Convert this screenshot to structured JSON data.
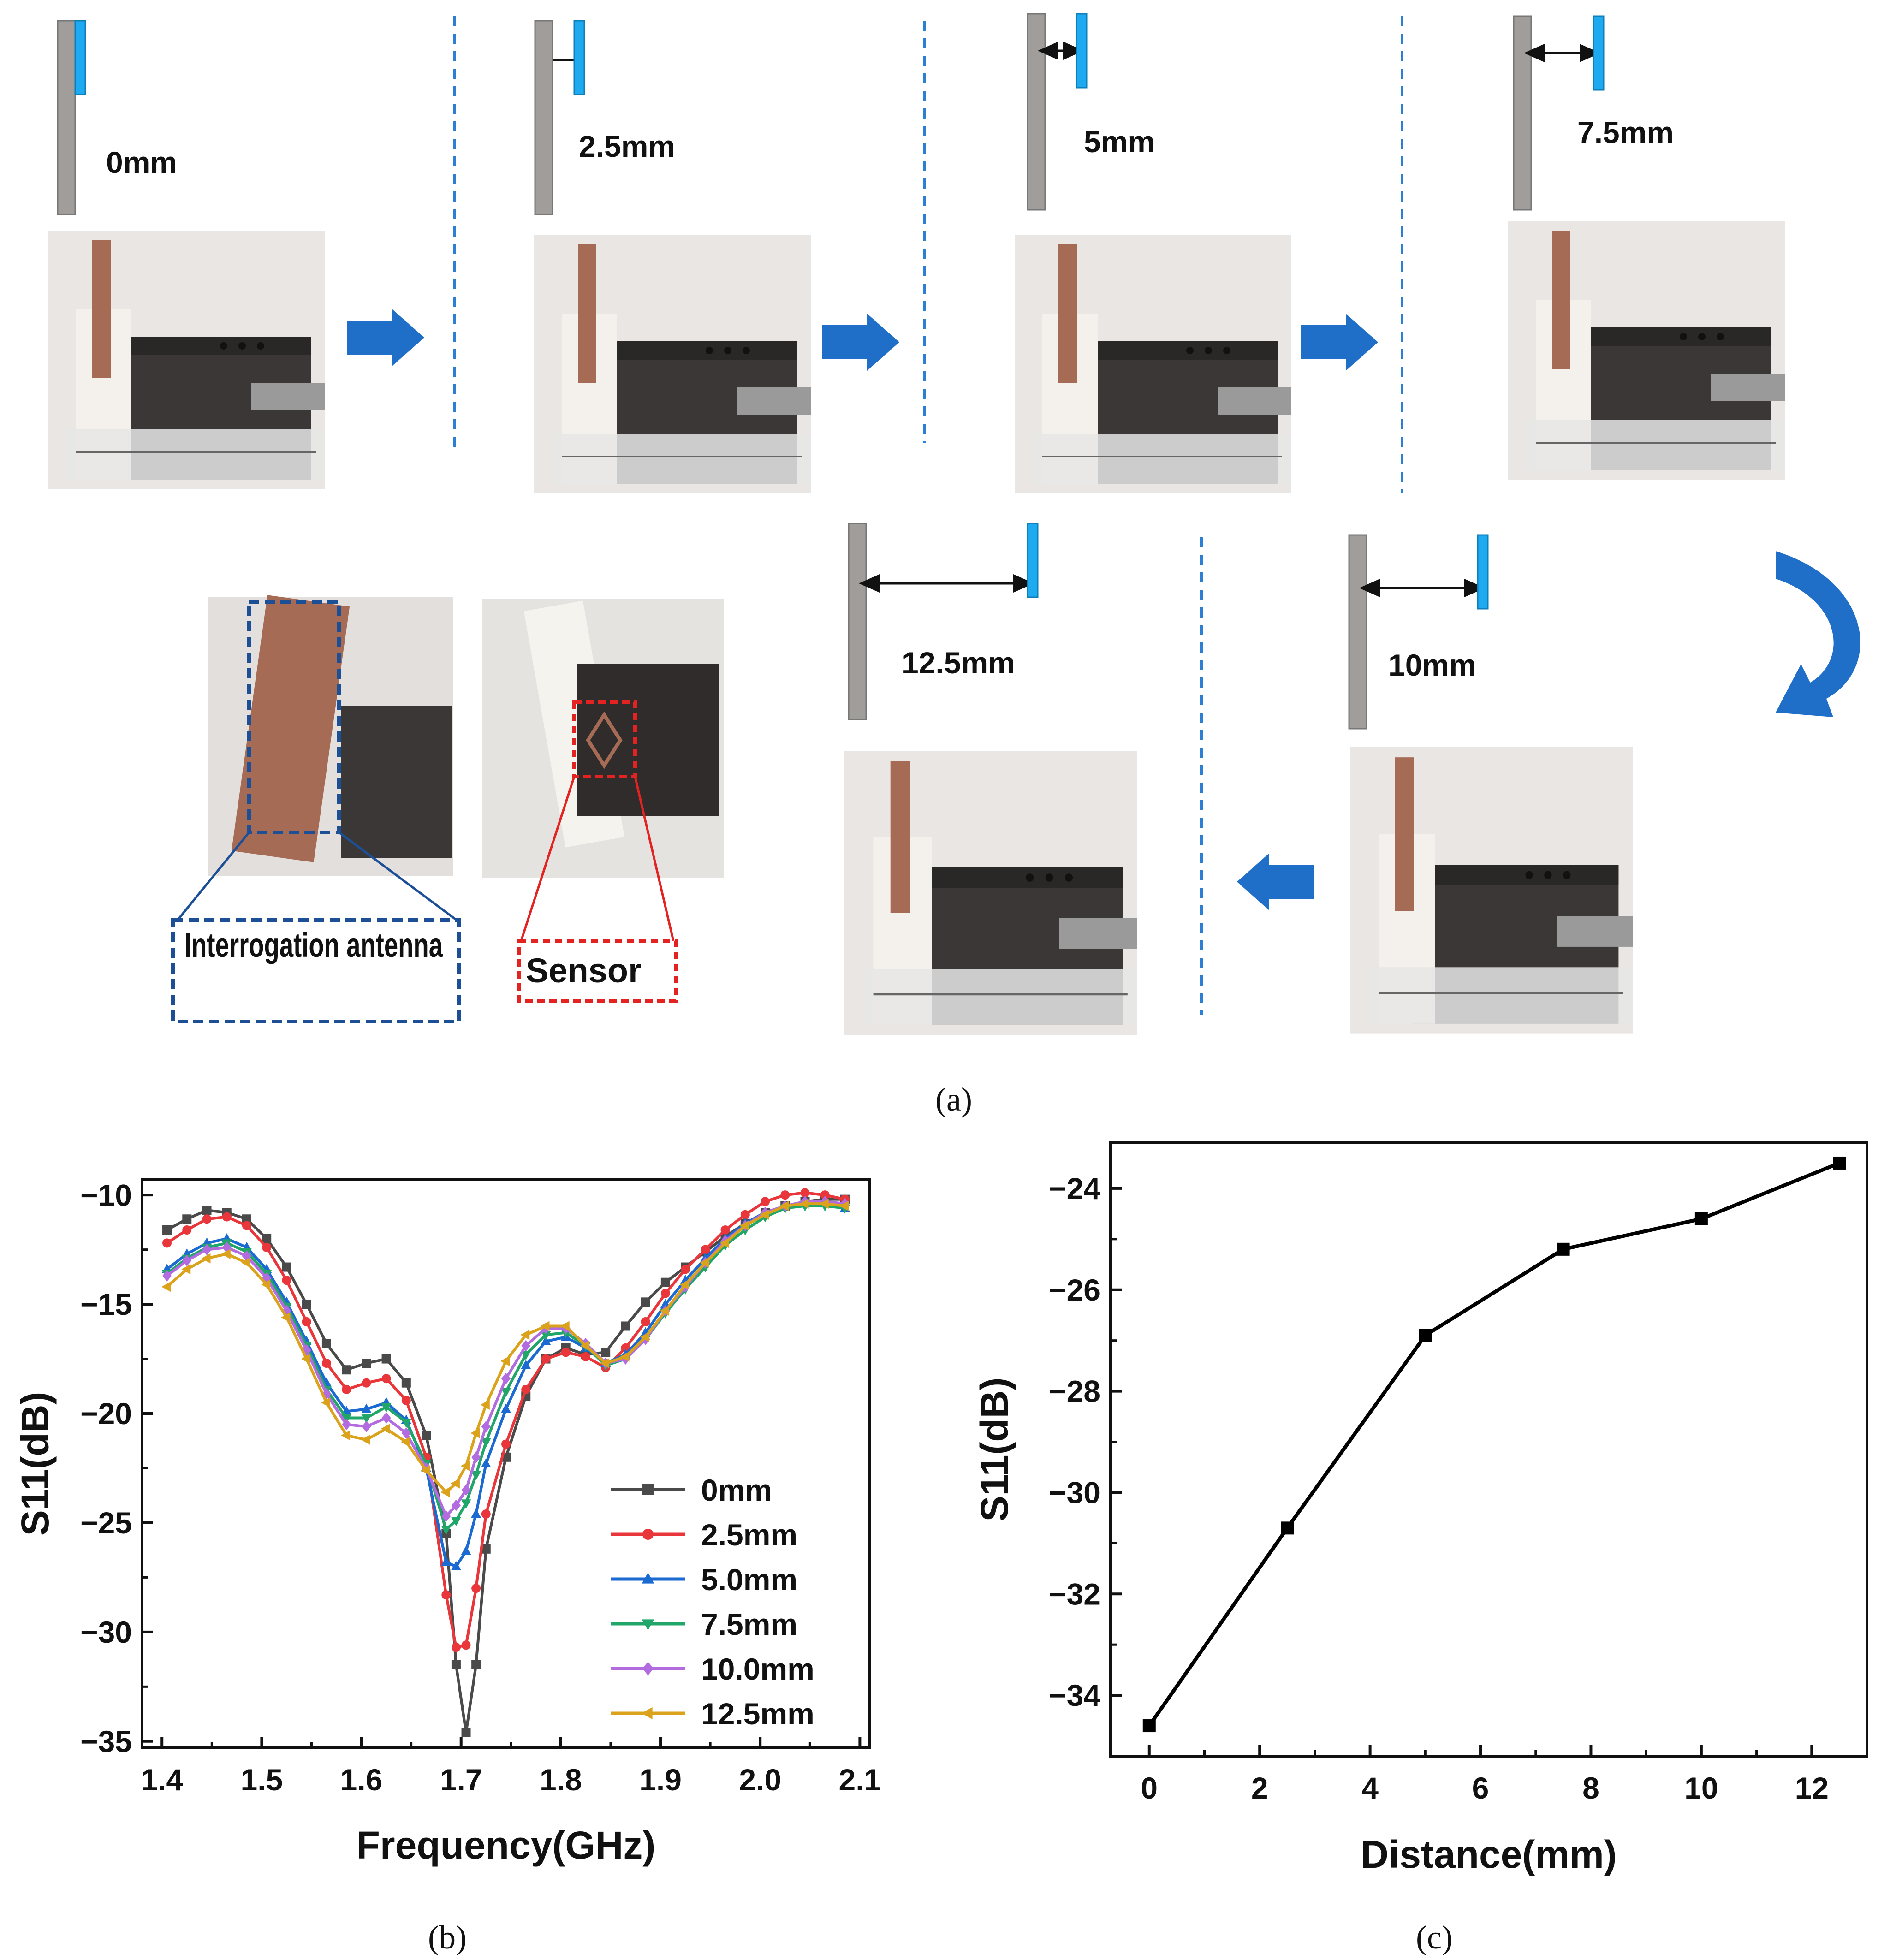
{
  "panel_a": {
    "caption": "(a)",
    "distance_labels": [
      "0mm",
      "2.5mm",
      "5mm",
      "7.5mm",
      "10mm",
      "12.5mm"
    ],
    "callouts": {
      "antenna": "Interrogation antenna",
      "sensor": "Sensor"
    },
    "colors": {
      "plate": "#a09d9b",
      "sensor_strip": "#1eaaf0",
      "arrow": "#1f6fc8",
      "dashed": "#2c7fd4",
      "antenna_box": "#1d4f97",
      "sensor_box": "#e32222"
    }
  },
  "chart_b": {
    "caption": "(b)",
    "chart_data": {
      "type": "line",
      "title": "",
      "xlabel": "Frequency(GHz)",
      "ylabel": "S11(dB)",
      "xlim": [
        1.38,
        2.11
      ],
      "ylim": [
        -35.3,
        -9.3
      ],
      "xticks": [
        1.4,
        1.5,
        1.6,
        1.7,
        1.8,
        1.9,
        2.0,
        2.1
      ],
      "xtick_labels": [
        "1.4",
        "1.5",
        "1.6",
        "1.7",
        "1.8",
        "1.9",
        "2.0",
        "2.1"
      ],
      "yticks": [
        -10,
        -15,
        -20,
        -25,
        -30,
        -35
      ],
      "ytick_labels": [
        "−10",
        "−15",
        "−20",
        "−25",
        "−30",
        "−35"
      ],
      "legend_position": "lower-right",
      "x": [
        1.405,
        1.425,
        1.445,
        1.465,
        1.485,
        1.505,
        1.525,
        1.545,
        1.565,
        1.585,
        1.605,
        1.625,
        1.645,
        1.665,
        1.685,
        1.695,
        1.705,
        1.715,
        1.725,
        1.745,
        1.765,
        1.785,
        1.805,
        1.825,
        1.845,
        1.865,
        1.885,
        1.905,
        1.925,
        1.945,
        1.965,
        1.985,
        2.005,
        2.025,
        2.045,
        2.065,
        2.085
      ],
      "series": [
        {
          "name": "0mm",
          "color": "#4a4a4a",
          "marker": "square",
          "values": [
            -11.6,
            -11.1,
            -10.7,
            -10.8,
            -11.1,
            -12.0,
            -13.3,
            -15.0,
            -16.8,
            -18.0,
            -17.7,
            -17.5,
            -18.6,
            -21.0,
            -25.5,
            -31.5,
            -34.6,
            -31.5,
            -26.2,
            -22.0,
            -19.2,
            -17.5,
            -17.0,
            -17.3,
            -17.2,
            -16.0,
            -14.9,
            -14.0,
            -13.3,
            -12.6,
            -11.9,
            -11.3,
            -10.8,
            -10.5,
            -10.3,
            -10.2,
            -10.2
          ]
        },
        {
          "name": "2.5mm",
          "color": "#e8363a",
          "marker": "circle",
          "values": [
            -12.2,
            -11.6,
            -11.1,
            -11.0,
            -11.4,
            -12.4,
            -13.9,
            -15.8,
            -17.7,
            -18.9,
            -18.6,
            -18.4,
            -19.4,
            -22.0,
            -28.3,
            -30.7,
            -30.6,
            -28.0,
            -24.6,
            -21.4,
            -18.9,
            -17.5,
            -17.2,
            -17.4,
            -17.9,
            -17.0,
            -15.8,
            -14.5,
            -13.4,
            -12.5,
            -11.6,
            -10.9,
            -10.3,
            -10.0,
            -9.9,
            -10.0,
            -10.2
          ]
        },
        {
          "name": "5.0mm",
          "color": "#1b6ad2",
          "marker": "triangle-up",
          "values": [
            -13.4,
            -12.7,
            -12.2,
            -12.0,
            -12.4,
            -13.4,
            -14.9,
            -16.7,
            -18.6,
            -19.9,
            -19.8,
            -19.5,
            -20.3,
            -22.5,
            -26.8,
            -27.0,
            -26.3,
            -24.6,
            -22.3,
            -19.8,
            -17.8,
            -16.7,
            -16.5,
            -17.0,
            -17.7,
            -17.3,
            -16.3,
            -15.0,
            -13.9,
            -12.9,
            -12.0,
            -11.3,
            -10.8,
            -10.5,
            -10.4,
            -10.4,
            -10.6
          ]
        },
        {
          "name": "7.5mm",
          "color": "#21a66a",
          "marker": "triangle-down",
          "values": [
            -13.6,
            -12.9,
            -12.4,
            -12.2,
            -12.6,
            -13.6,
            -15.1,
            -16.9,
            -18.9,
            -20.2,
            -20.2,
            -19.7,
            -20.4,
            -22.3,
            -25.3,
            -24.9,
            -24.1,
            -22.8,
            -21.3,
            -19.0,
            -17.3,
            -16.4,
            -16.3,
            -16.9,
            -17.8,
            -17.5,
            -16.6,
            -15.4,
            -14.3,
            -13.3,
            -12.3,
            -11.6,
            -11.0,
            -10.6,
            -10.5,
            -10.5,
            -10.6
          ]
        },
        {
          "name": "10.0mm",
          "color": "#b36be0",
          "marker": "diamond",
          "values": [
            -13.7,
            -13.0,
            -12.5,
            -12.4,
            -12.8,
            -13.8,
            -15.3,
            -17.1,
            -19.1,
            -20.5,
            -20.6,
            -20.2,
            -20.9,
            -22.5,
            -24.7,
            -24.2,
            -23.5,
            -22.0,
            -20.6,
            -18.4,
            -16.9,
            -16.1,
            -16.1,
            -16.8,
            -17.7,
            -17.5,
            -16.6,
            -15.3,
            -14.2,
            -13.1,
            -12.1,
            -11.4,
            -10.8,
            -10.5,
            -10.3,
            -10.3,
            -10.4
          ]
        },
        {
          "name": "12.5mm",
          "color": "#dba21b",
          "marker": "triangle-left",
          "values": [
            -14.2,
            -13.4,
            -12.9,
            -12.7,
            -13.1,
            -14.1,
            -15.6,
            -17.5,
            -19.5,
            -21.0,
            -21.2,
            -20.7,
            -21.3,
            -22.6,
            -23.6,
            -23.2,
            -22.4,
            -20.9,
            -19.6,
            -17.6,
            -16.4,
            -16.0,
            -16.0,
            -16.9,
            -17.7,
            -17.4,
            -16.5,
            -15.3,
            -14.1,
            -13.1,
            -12.2,
            -11.4,
            -10.9,
            -10.5,
            -10.4,
            -10.4,
            -10.5
          ]
        }
      ]
    }
  },
  "chart_c": {
    "caption": "(c)",
    "chart_data": {
      "type": "line",
      "title": "",
      "xlabel": "Distance(mm)",
      "ylabel": "S11(dB)",
      "xlim": [
        -0.7,
        13.0
      ],
      "ylim": [
        -35.2,
        -23.1
      ],
      "xticks": [
        0,
        2,
        4,
        6,
        8,
        10,
        12
      ],
      "xtick_labels": [
        "0",
        "2",
        "4",
        "6",
        "8",
        "10",
        "12"
      ],
      "yticks": [
        -24,
        -26,
        -28,
        -30,
        -32,
        -34
      ],
      "ytick_labels": [
        "−24",
        "−26",
        "−28",
        "−30",
        "−32",
        "−34"
      ],
      "x": [
        0,
        2.5,
        5.0,
        7.5,
        10.0,
        12.5
      ],
      "series": [
        {
          "name": "S11",
          "color": "#000000",
          "marker": "square",
          "values": [
            -34.6,
            -30.7,
            -26.9,
            -25.2,
            -24.6,
            -23.5
          ]
        }
      ]
    }
  }
}
